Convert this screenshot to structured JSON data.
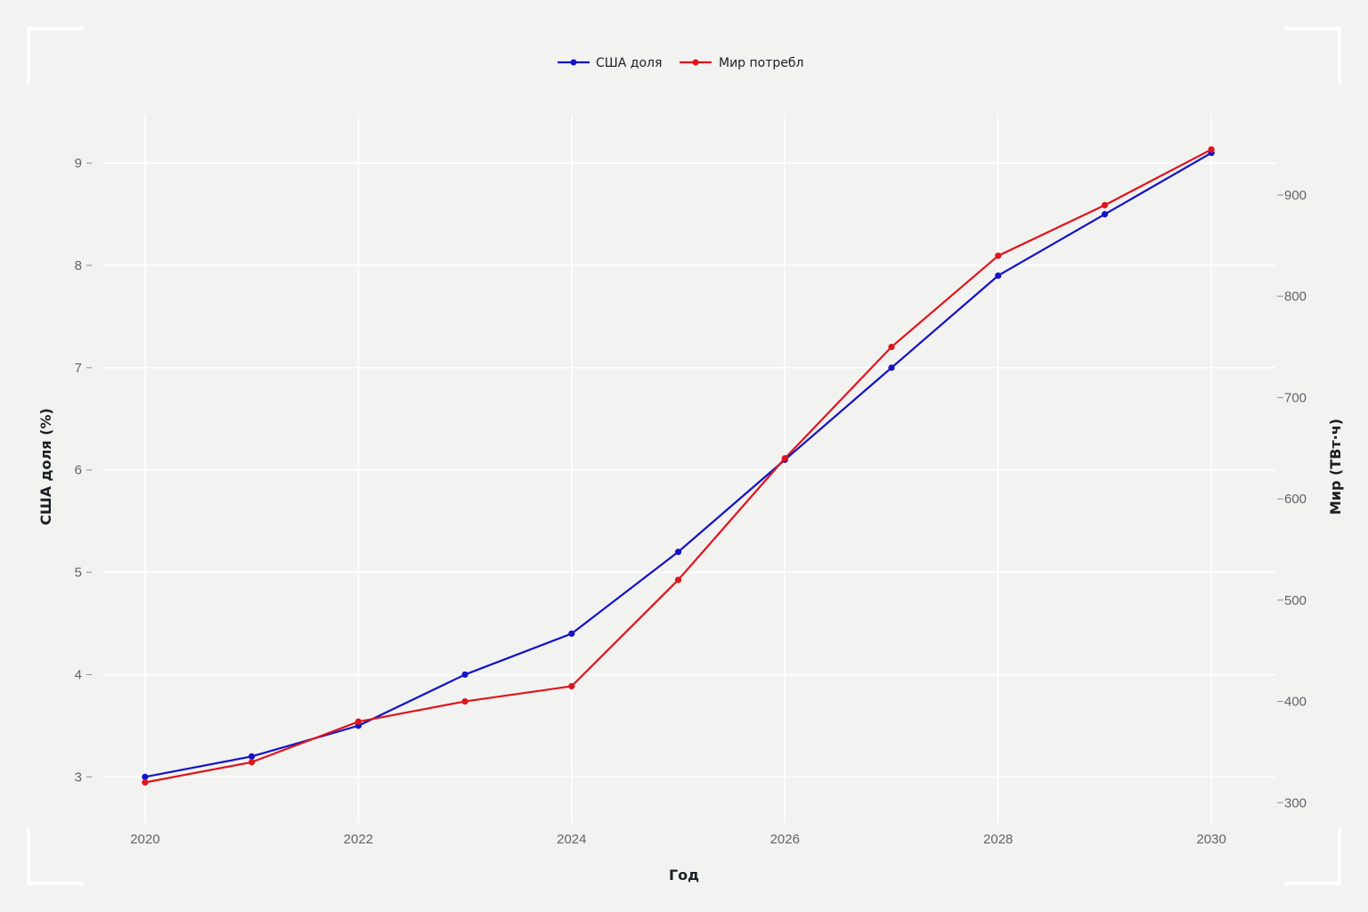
{
  "chart_data": {
    "type": "line",
    "x": [
      2020,
      2021,
      2022,
      2023,
      2024,
      2025,
      2026,
      2027,
      2028,
      2029,
      2030
    ],
    "x_ticks": [
      2020,
      2022,
      2024,
      2026,
      2028,
      2030
    ],
    "xlabel": "Год",
    "ylabel_left": "США доля (%)",
    "ylabel_right": "Мир (ТВт·ч)",
    "ylim_left": [
      2.55,
      9.48
    ],
    "ylim_right": [
      280,
      980
    ],
    "yticks_left": [
      3,
      4,
      5,
      6,
      7,
      8,
      9
    ],
    "yticks_right": [
      300,
      400,
      500,
      600,
      700,
      800,
      900
    ],
    "xlim": [
      2019.6,
      2030.6
    ],
    "grid": true,
    "legend_position": "top-center",
    "series": [
      {
        "name": "США доля",
        "axis": "left",
        "color": "#1313c8",
        "values": [
          3.0,
          3.2,
          3.5,
          4.0,
          4.4,
          5.2,
          6.1,
          7.0,
          7.9,
          8.5,
          9.1
        ]
      },
      {
        "name": "Мир потребл",
        "axis": "right",
        "color": "#e0141b",
        "values": [
          320,
          340,
          380,
          400,
          415,
          520,
          640,
          750,
          840,
          890,
          945
        ]
      }
    ]
  }
}
